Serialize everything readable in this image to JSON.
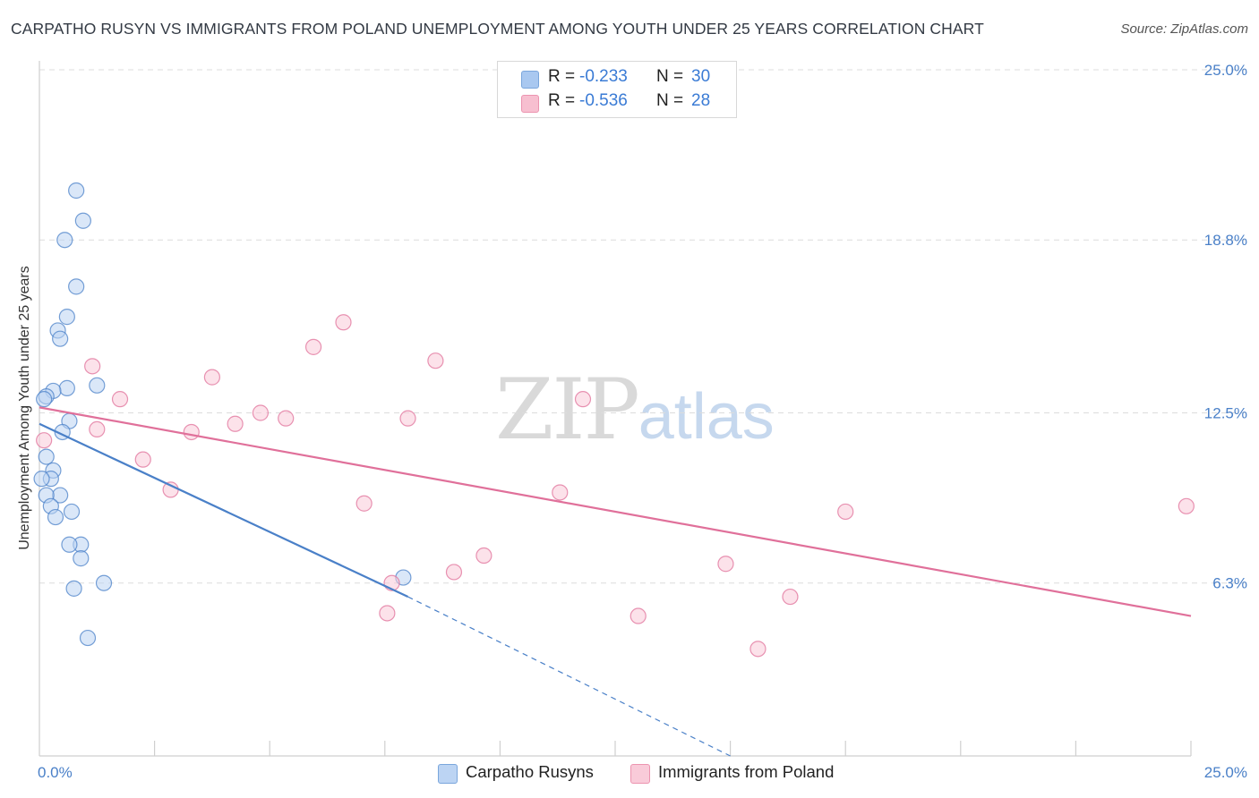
{
  "title": "CARPATHO RUSYN VS IMMIGRANTS FROM POLAND UNEMPLOYMENT AMONG YOUTH UNDER 25 YEARS CORRELATION CHART",
  "source": "Source: ZipAtlas.com",
  "watermark": {
    "zip": "ZIP",
    "atlas": "atlas"
  },
  "legend": {
    "r_label": "R =",
    "n_label": "N =",
    "rows": [
      {
        "r": "-0.233",
        "n": "30",
        "color": "#a9c8f0",
        "border": "#7aa6dc"
      },
      {
        "r": "-0.536",
        "n": "28",
        "color": "#f7bfd0",
        "border": "#ec94b0"
      }
    ]
  },
  "bottom_legend": [
    {
      "label": "Carpatho Rusyns",
      "color": "#bcd4f3",
      "border": "#7aa6dc"
    },
    {
      "label": "Immigrants from Poland",
      "color": "#f9cbd9",
      "border": "#ec94b0"
    }
  ],
  "chart_data": {
    "type": "scatter",
    "xlabel": "",
    "ylabel": "Unemployment Among Youth under 25 years",
    "xlim": [
      0,
      25
    ],
    "ylim": [
      0,
      25.0
    ],
    "x_tick_labels": [
      {
        "value": 0,
        "label": "0.0%"
      },
      {
        "value": 25,
        "label": "25.0%"
      }
    ],
    "y_ticks": [
      {
        "value": 6.3,
        "label": "6.3%"
      },
      {
        "value": 12.5,
        "label": "12.5%"
      },
      {
        "value": 18.8,
        "label": "18.8%"
      },
      {
        "value": 25.0,
        "label": "25.0%"
      }
    ],
    "x_minor_ticks": [
      2.5,
      5.0,
      7.5,
      10.0,
      12.5,
      15.0,
      17.5,
      20.0,
      22.5,
      25.0
    ],
    "grid": true,
    "legend_position": "top-center",
    "series": [
      {
        "name": "Carpatho Rusyns",
        "color": "#4a80c8",
        "fill": "#bcd4f3",
        "trend": {
          "x": [
            0.0,
            8.0
          ],
          "y": [
            12.1,
            5.8
          ],
          "extend_to": [
            15.0,
            0.0
          ]
        },
        "points": [
          [
            0.8,
            20.6
          ],
          [
            0.95,
            19.5
          ],
          [
            0.55,
            18.8
          ],
          [
            0.8,
            17.1
          ],
          [
            0.6,
            16.0
          ],
          [
            0.4,
            15.5
          ],
          [
            0.45,
            15.2
          ],
          [
            1.25,
            13.5
          ],
          [
            0.6,
            13.4
          ],
          [
            0.3,
            13.3
          ],
          [
            0.15,
            13.1
          ],
          [
            0.1,
            13.0
          ],
          [
            0.65,
            12.2
          ],
          [
            0.5,
            11.8
          ],
          [
            0.15,
            10.9
          ],
          [
            0.3,
            10.4
          ],
          [
            0.25,
            10.1
          ],
          [
            0.05,
            10.1
          ],
          [
            0.45,
            9.5
          ],
          [
            0.15,
            9.5
          ],
          [
            0.25,
            9.1
          ],
          [
            0.7,
            8.9
          ],
          [
            0.35,
            8.7
          ],
          [
            0.9,
            7.7
          ],
          [
            0.65,
            7.7
          ],
          [
            0.9,
            7.2
          ],
          [
            1.4,
            6.3
          ],
          [
            0.75,
            6.1
          ],
          [
            7.9,
            6.5
          ],
          [
            1.05,
            4.3
          ]
        ]
      },
      {
        "name": "Immigrants from Poland",
        "color": "#e0709a",
        "fill": "#f9cbd9",
        "trend": {
          "x": [
            0.0,
            25.0
          ],
          "y": [
            12.7,
            5.1
          ]
        },
        "points": [
          [
            0.1,
            11.5
          ],
          [
            1.25,
            11.9
          ],
          [
            1.15,
            14.2
          ],
          [
            1.75,
            13.0
          ],
          [
            2.25,
            10.8
          ],
          [
            2.85,
            9.7
          ],
          [
            3.3,
            11.8
          ],
          [
            3.75,
            13.8
          ],
          [
            4.25,
            12.1
          ],
          [
            4.8,
            12.5
          ],
          [
            5.35,
            12.3
          ],
          [
            5.95,
            14.9
          ],
          [
            6.6,
            15.8
          ],
          [
            7.05,
            9.2
          ],
          [
            7.55,
            5.2
          ],
          [
            7.65,
            6.3
          ],
          [
            8.0,
            12.3
          ],
          [
            8.6,
            14.4
          ],
          [
            9.0,
            6.7
          ],
          [
            9.65,
            7.3
          ],
          [
            11.3,
            9.6
          ],
          [
            11.8,
            13.0
          ],
          [
            13.0,
            5.1
          ],
          [
            14.9,
            7.0
          ],
          [
            15.6,
            3.9
          ],
          [
            16.3,
            5.8
          ],
          [
            17.5,
            8.9
          ],
          [
            24.9,
            9.1
          ]
        ]
      }
    ]
  }
}
